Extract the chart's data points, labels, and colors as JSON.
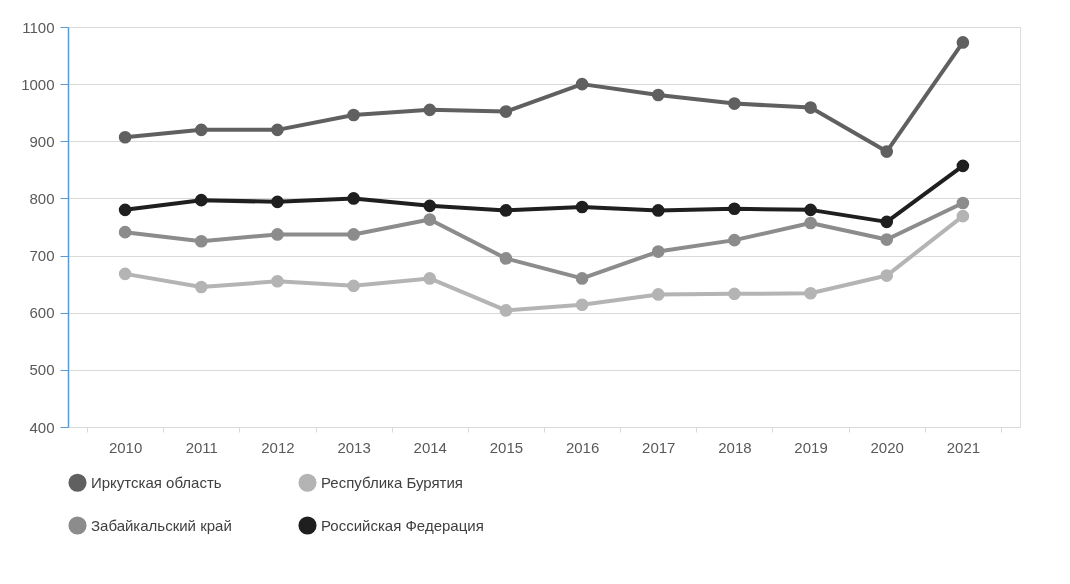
{
  "chart_data": {
    "type": "line",
    "categories": [
      "2010",
      "2011",
      "2012",
      "2013",
      "2014",
      "2015",
      "2016",
      "2017",
      "2018",
      "2019",
      "2020",
      "2021"
    ],
    "series": [
      {
        "name": "Иркутская область",
        "color": "#606060",
        "values": [
          907,
          920,
          920,
          946,
          955,
          952,
          1000,
          981,
          966,
          959,
          882,
          1073
        ]
      },
      {
        "name": "Республика Бурятия",
        "color": "#b4b4b4",
        "values": [
          668,
          645,
          655,
          647,
          660,
          604,
          614,
          632,
          633,
          634,
          665,
          769
        ]
      },
      {
        "name": "Забайкальский край",
        "color": "#8c8c8c",
        "values": [
          741,
          725,
          737,
          737,
          763,
          695,
          660,
          707,
          727,
          757,
          728,
          792
        ]
      },
      {
        "name": "Российская Федерация",
        "color": "#1f1f1f",
        "values": [
          780,
          797,
          794,
          800,
          787,
          779,
          785,
          779,
          782,
          780,
          759,
          857
        ]
      }
    ],
    "ylim": [
      400,
      1100
    ],
    "yticks": [
      400,
      500,
      600,
      700,
      800,
      900,
      1000,
      1100
    ],
    "grid": "y",
    "legend": "bottom",
    "marker": "circle",
    "line_style": "solid"
  }
}
